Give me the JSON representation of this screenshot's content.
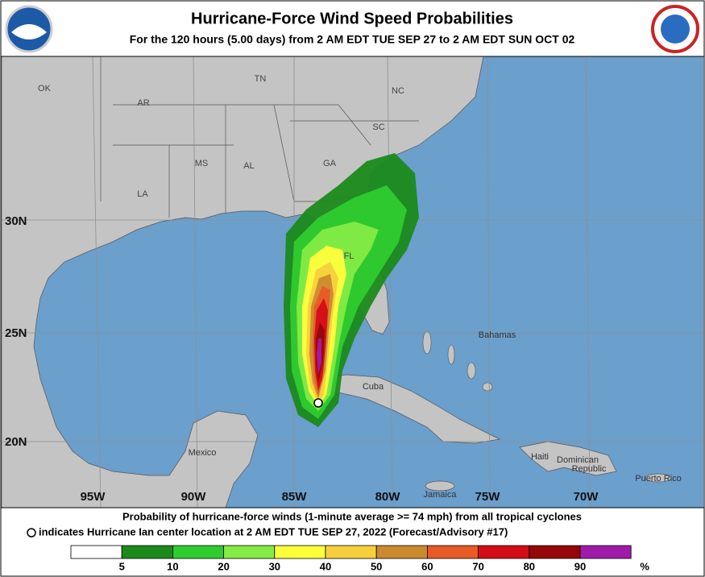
{
  "header": {
    "title": "Hurricane-Force Wind Speed Probabilities",
    "subtitle": "For the 120 hours (5.00 days) from 2 AM EDT TUE SEP 27 to 2 AM EDT SUN OCT 02"
  },
  "map": {
    "state_labels": [
      "OK",
      "AR",
      "TN",
      "NC",
      "SC",
      "MS",
      "AL",
      "GA",
      "LA",
      "FL"
    ],
    "place_labels": [
      "Bahamas",
      "Cuba",
      "Mexico",
      "Jamaica",
      "Haiti",
      "Dominican",
      "Republic",
      "Puerto Rico"
    ],
    "lat_labels": [
      "30N",
      "25N",
      "20N"
    ],
    "lon_labels": [
      "95W",
      "90W",
      "85W",
      "80W",
      "75W",
      "70W"
    ]
  },
  "footer": {
    "line1": "Probability of hurricane-force winds (1-minute average >= 74 mph) from all tropical cyclones",
    "line2": "indicates Hurricane Ian center location at 2 AM EDT TUE SEP 27, 2022 (Forecast/Advisory #17)"
  },
  "legend": {
    "ticks": [
      5,
      10,
      20,
      30,
      40,
      50,
      60,
      70,
      80,
      90
    ],
    "unit": "%",
    "colors": [
      "#ffffff",
      "#1b8a1b",
      "#2fcc2f",
      "#84ec44",
      "#ffff3c",
      "#f6d03c",
      "#cc8a2e",
      "#e85a26",
      "#d40c18",
      "#960808",
      "#a01ca8"
    ]
  }
}
